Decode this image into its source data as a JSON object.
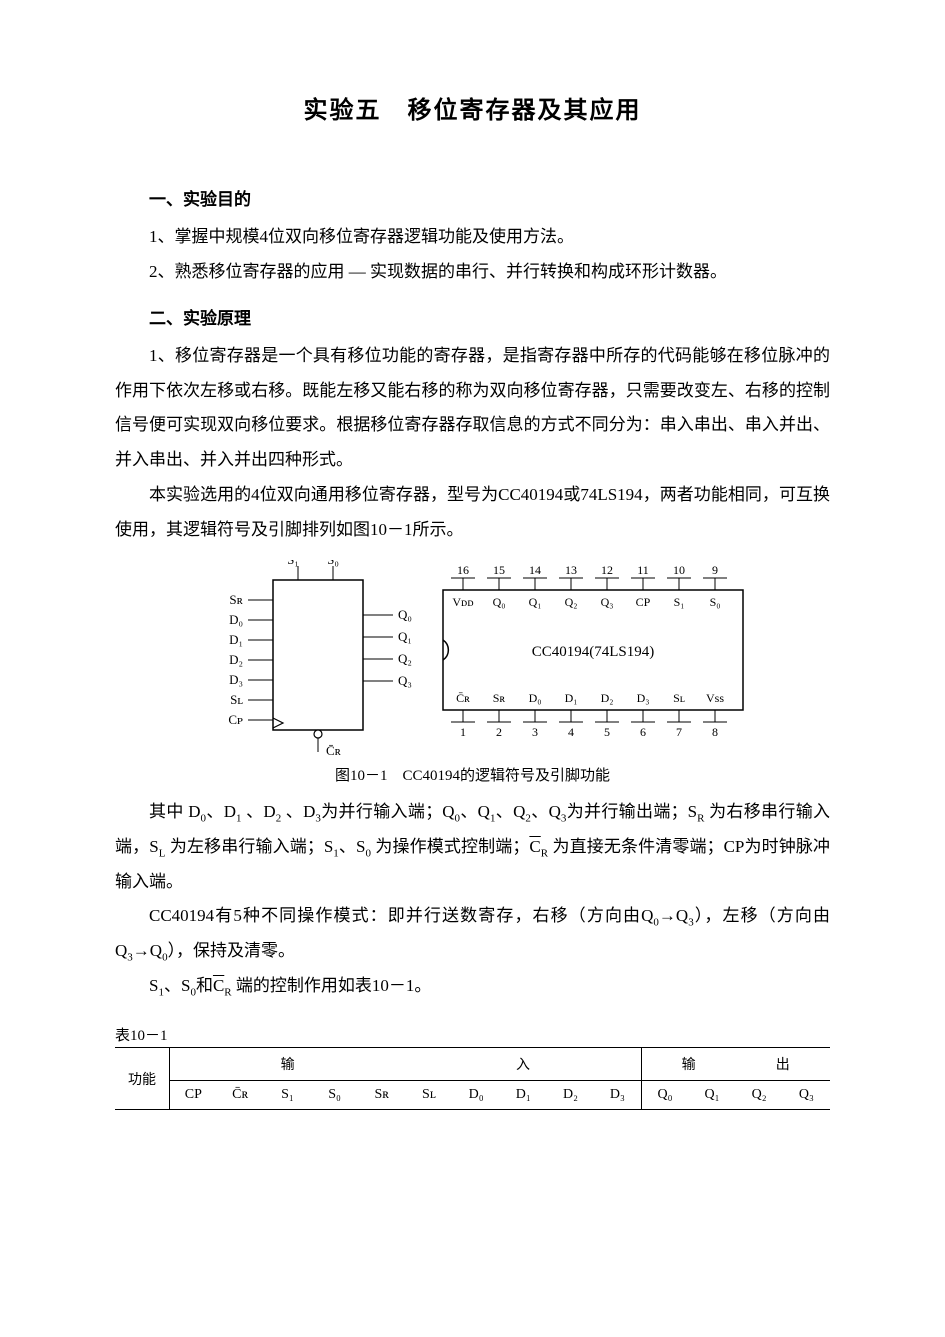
{
  "title": "实验五　移位寄存器及其应用",
  "section1": {
    "heading": "一、实验目的",
    "p1": "1、掌握中规模4位双向移位寄存器逻辑功能及使用方法。",
    "p2": "2、熟悉移位寄存器的应用 — 实现数据的串行、并行转换和构成环形计数器。"
  },
  "section2": {
    "heading": "二、实验原理",
    "p1": "1、移位寄存器是一个具有移位功能的寄存器，是指寄存器中所存的代码能够在移位脉冲的作用下依次左移或右移。既能左移又能右移的称为双向移位寄存器，只需要改变左、右移的控制信号便可实现双向移位要求。根据移位寄存器存取信息的方式不同分为：串入串出、串入并出、并入串出、并入并出四种形式。",
    "p2": "本实验选用的4位双向通用移位寄存器，型号为CC40194或74LS194，两者功能相同，可互换使用，其逻辑符号及引脚排列如图10－1所示。",
    "p3_a": "其中 D",
    "p3_b": "、D",
    "p3_c": " 、D",
    "p3_d": " 、D",
    "p3_e": "为并行输入端；Q",
    "p3_f": "、Q",
    "p3_g": "、Q",
    "p3_h": "、Q",
    "p3_i": "为并行输出端；S",
    "p3_j": " 为右移串行输入端，S",
    "p3_k": " 为左移串行输入端；S",
    "p3_l": "、S",
    "p3_m": " 为操作模式控制端；",
    "p3_n": " 为直接无条件清零端；CP为时钟脉冲输入端。",
    "p4_a": "CC40194有5种不同操作模式：即并行送数寄存，右移（方向由Q",
    "p4_b": "→Q",
    "p4_c": "），左移（方向由Q",
    "p4_d": "→Q",
    "p4_e": "），保持及清零。",
    "p5_a": "S",
    "p5_b": "、S",
    "p5_c": "和",
    "p5_d": " 端的控制作用如表10－1。"
  },
  "diagram": {
    "left_pins_top": [
      "S₁",
      "S₀"
    ],
    "left_pins_left": [
      "Sʀ",
      "D₀",
      "D₁",
      "D₂",
      "D₃",
      "Sʟ",
      "Cᴘ"
    ],
    "left_pins_right": [
      "Q₀",
      "Q₁",
      "Q₂",
      "Q₃"
    ],
    "left_pins_bottom": "C̄ʀ",
    "chip_label": "CC40194(74LS194)",
    "pins_top_nums": [
      "16",
      "15",
      "14",
      "13",
      "12",
      "11",
      "10",
      "9"
    ],
    "pins_top_labels": [
      "Vᴅᴅ",
      "Q₀",
      "Q₁",
      "Q₂",
      "Q₃",
      "CP",
      "S₁",
      "S₀"
    ],
    "pins_bot_labels": [
      "C̄ʀ",
      "Sʀ",
      "D₀",
      "D₁",
      "D₂",
      "D₃",
      "Sʟ",
      "Vss"
    ],
    "pins_bot_nums": [
      "1",
      "2",
      "3",
      "4",
      "5",
      "6",
      "7",
      "8"
    ],
    "caption": "图10－1　CC40194的逻辑符号及引脚功能"
  },
  "table": {
    "label": "表10－1",
    "group_in": "输",
    "group_mid": "入",
    "group_out1": "输",
    "group_out2": "出",
    "func": "功能",
    "cols_in": [
      "CP",
      "C̄ʀ",
      "S₁",
      "S₀",
      "Sʀ",
      "Sʟ",
      "D₀",
      "D₁",
      "D₂",
      "D₃"
    ],
    "cols_out": [
      "Q₀",
      "Q₁",
      "Q₂",
      "Q₃"
    ]
  },
  "style": {
    "text_color": "#000000",
    "bg_color": "#ffffff",
    "title_fontsize": 24,
    "body_fontsize": 17,
    "line_height": 2.0,
    "stroke_color": "#000000"
  }
}
